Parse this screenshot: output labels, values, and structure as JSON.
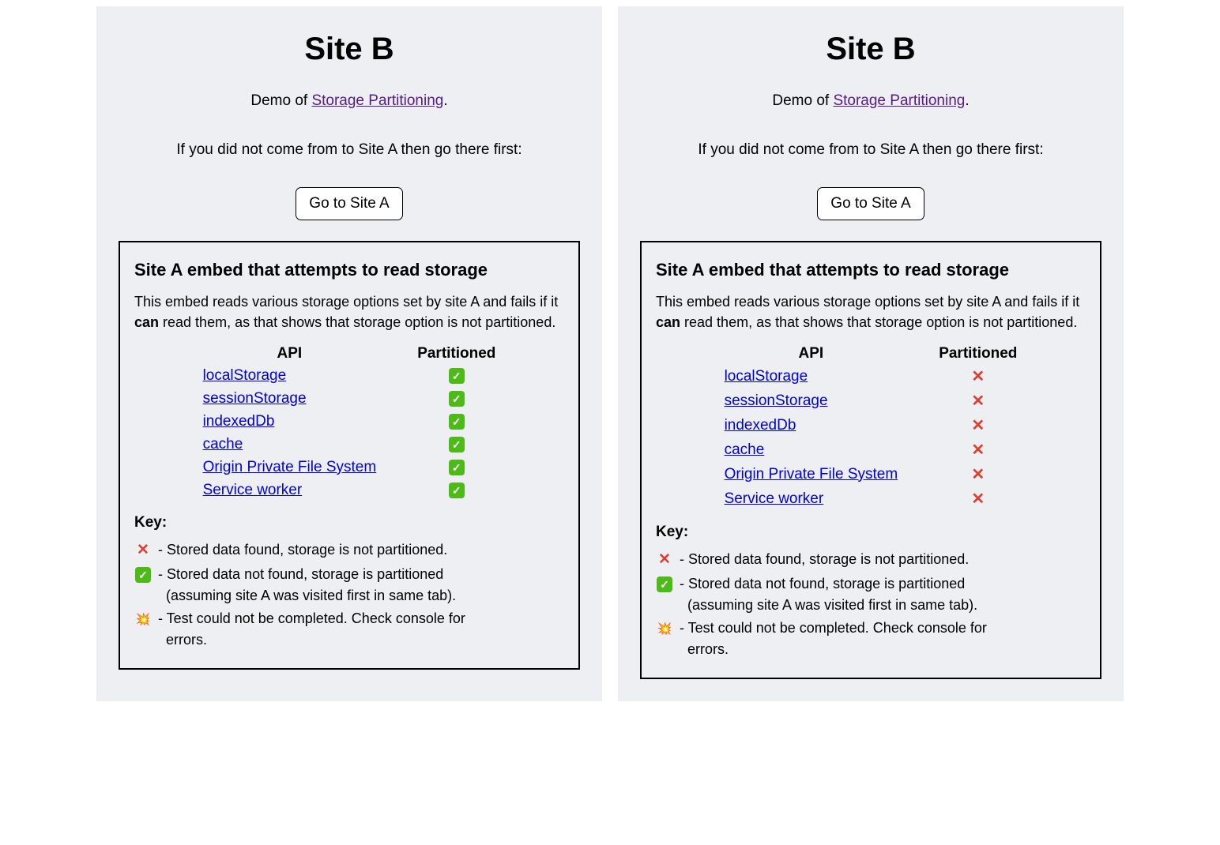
{
  "colors": {
    "page_bg": "#ffffff",
    "panel_bg": "#eeeff2",
    "text": "#000000",
    "visited_link": "#551a8b",
    "api_link": "#0000d8",
    "cross": "#e03c31",
    "check_bg": "#4cbb17",
    "check_fg": "#ffffff",
    "box_border": "#000000"
  },
  "icons": {
    "check": "✓",
    "cross": "✕",
    "warn": "💥"
  },
  "header": {
    "title": "Site B",
    "demo_prefix": "Demo of ",
    "demo_link": "Storage Partitioning",
    "demo_suffix": ".",
    "instruction": "If you did not come from to Site A then go there first:",
    "button_label": "Go to Site A"
  },
  "embed": {
    "heading": "Site A embed that attempts to read storage",
    "desc_before": "This embed reads various storage options set by site A and fails if it ",
    "desc_bold": "can",
    "desc_after": " read them, as that shows that storage option is not partitioned.",
    "table": {
      "col_api": "API",
      "col_partitioned": "Partitioned"
    },
    "apis": [
      {
        "label": "localStorage"
      },
      {
        "label": "sessionStorage"
      },
      {
        "label": "indexedDb"
      },
      {
        "label": "cache"
      },
      {
        "label": "Origin Private File System"
      },
      {
        "label": "Service worker"
      }
    ],
    "key_title": "Key:",
    "key_items": [
      {
        "icon": "cross",
        "text": "- Stored data found, storage is not partitioned."
      },
      {
        "icon": "check",
        "text_line1": "- Stored data not found, storage is partitioned",
        "text_line2": "(assuming site A was visited first in same tab)."
      },
      {
        "icon": "warn",
        "text_line1": "- Test could not be completed. Check console for",
        "text_line2": "errors."
      }
    ]
  },
  "panels": [
    {
      "results": [
        "check",
        "check",
        "check",
        "check",
        "check",
        "check"
      ]
    },
    {
      "results": [
        "cross",
        "cross",
        "cross",
        "cross",
        "cross",
        "cross"
      ]
    }
  ]
}
